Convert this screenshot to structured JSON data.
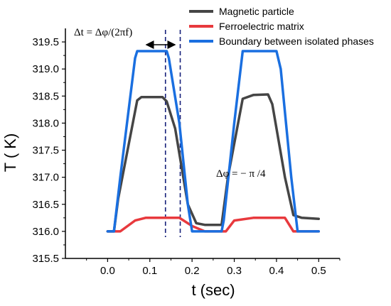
{
  "chart_data": {
    "type": "line",
    "xlabel": "t (sec)",
    "ylabel": "T ( K)",
    "xlim": [
      -0.1,
      0.55
    ],
    "ylim": [
      315.5,
      319.75
    ],
    "xticks": [
      "0.0",
      "0.1",
      "0.2",
      "0.3",
      "0.4",
      "0.5"
    ],
    "yticks": [
      "315.5",
      "316.0",
      "316.5",
      "317.0",
      "317.5",
      "318.0",
      "318.5",
      "319.0",
      "319.5"
    ],
    "legend_position": "top-right",
    "series": [
      {
        "name": "Magnetic particle",
        "color": "#454545",
        "x": [
          0.0,
          0.015,
          0.025,
          0.07,
          0.08,
          0.13,
          0.14,
          0.16,
          0.175,
          0.19,
          0.21,
          0.23,
          0.265,
          0.27,
          0.285,
          0.32,
          0.345,
          0.38,
          0.39,
          0.42,
          0.44,
          0.46,
          0.5
        ],
        "y": [
          316.0,
          316.0,
          316.6,
          318.42,
          318.48,
          318.48,
          318.4,
          317.9,
          317.2,
          316.5,
          316.15,
          316.12,
          316.12,
          316.12,
          317.0,
          318.45,
          318.52,
          318.53,
          318.35,
          317.0,
          316.3,
          316.25,
          316.23
        ]
      },
      {
        "name": "Ferroelectric matrix",
        "color": "#e8393d",
        "x": [
          0.0,
          0.03,
          0.065,
          0.09,
          0.17,
          0.2,
          0.23,
          0.28,
          0.3,
          0.345,
          0.42,
          0.44,
          0.5
        ],
        "y": [
          316.0,
          316.0,
          316.2,
          316.25,
          316.25,
          316.1,
          316.0,
          316.0,
          316.2,
          316.25,
          316.25,
          316.0,
          316.0
        ]
      },
      {
        "name": "Boundary between isolated phases",
        "color": "#1a6fe0",
        "x": [
          0.0,
          0.015,
          0.03,
          0.065,
          0.07,
          0.14,
          0.145,
          0.17,
          0.19,
          0.2,
          0.27,
          0.275,
          0.3,
          0.32,
          0.4,
          0.41,
          0.435,
          0.45,
          0.5
        ],
        "y": [
          316.0,
          316.0,
          317.0,
          319.2,
          319.33,
          319.33,
          319.2,
          318.0,
          316.5,
          316.0,
          316.0,
          316.2,
          318.0,
          319.33,
          319.33,
          319.0,
          317.0,
          316.0,
          316.0
        ]
      }
    ],
    "vlines": [
      0.137,
      0.172
    ],
    "annotations": {
      "delta_t": "Δt = Δφ/(2πf)",
      "delta_phi": "Δφ = − π /4"
    }
  }
}
